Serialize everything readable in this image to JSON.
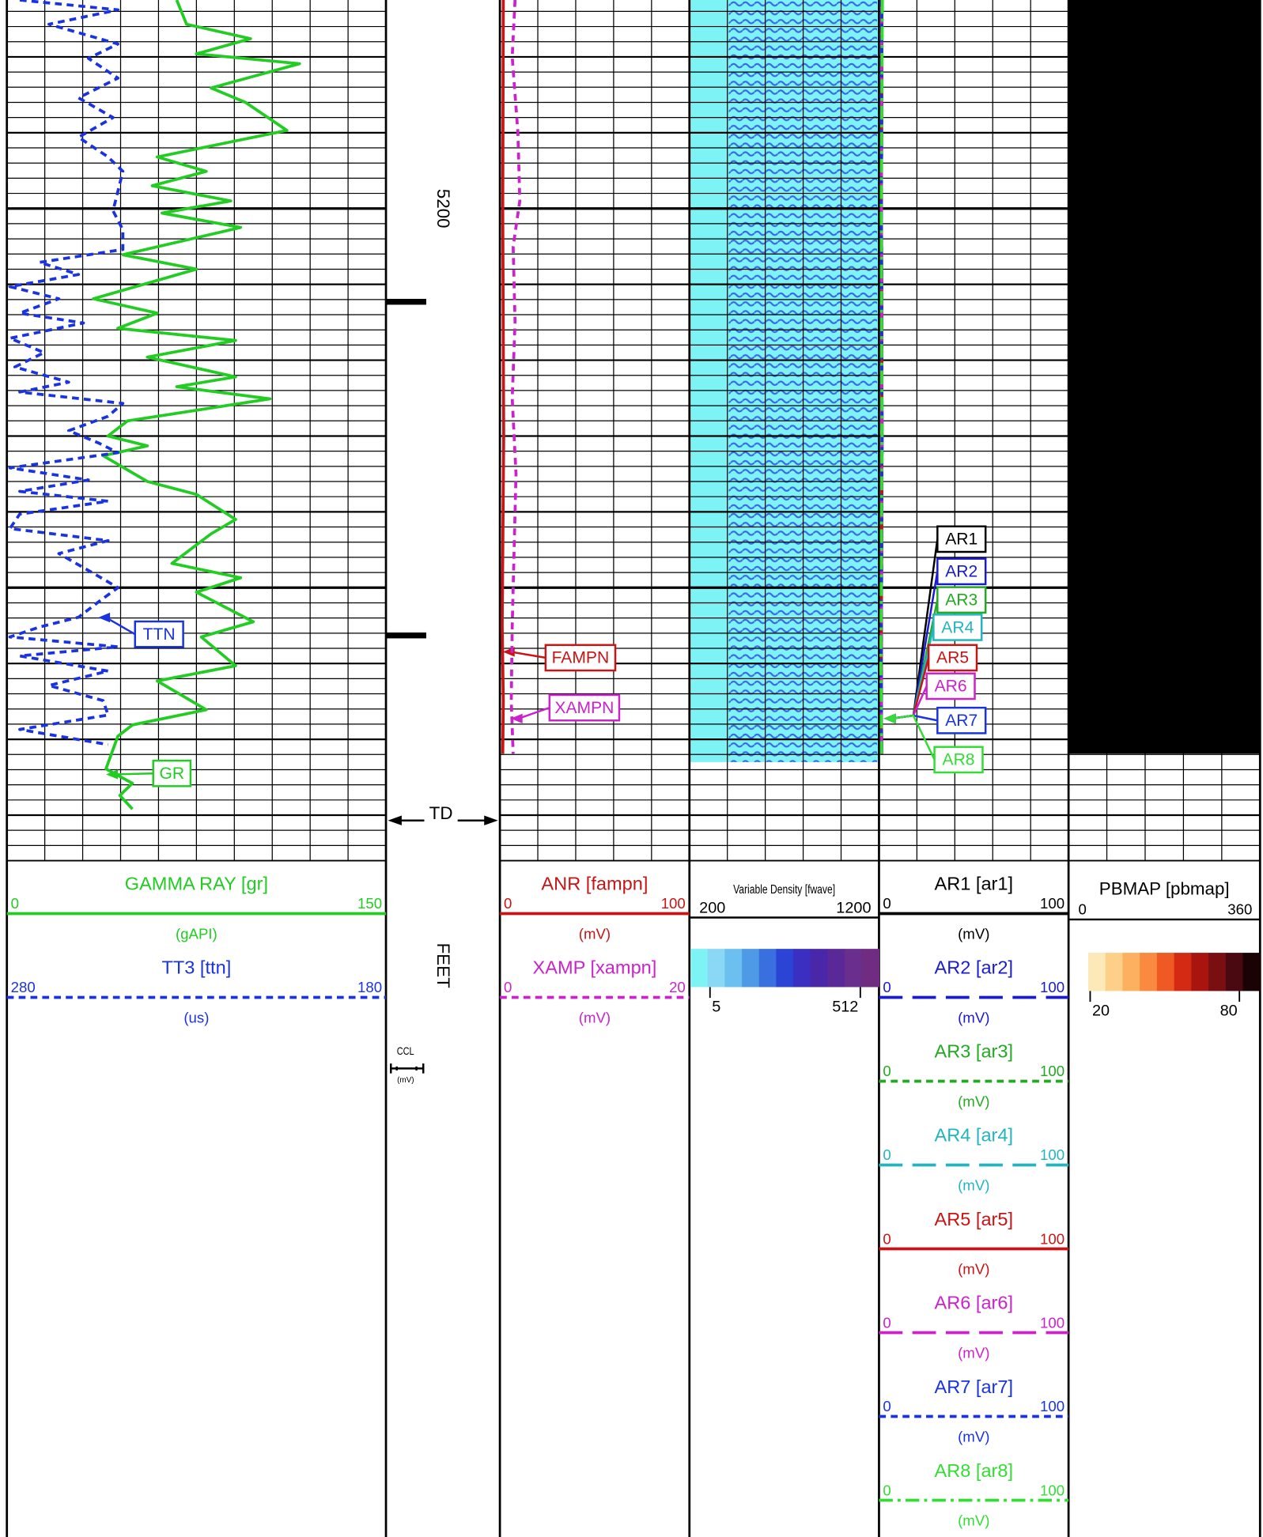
{
  "chart_data": {
    "type": "well-log",
    "depth_label": "FEET",
    "ylim": [
      5172.5,
      5286
    ],
    "yticks": [
      5200
    ],
    "grid_minor": 2,
    "grid_medium": 10,
    "grid_major": 50,
    "td": {
      "label": "TD",
      "value": 5280.7
    },
    "collars": [
      5212.3,
      5256.3
    ],
    "ccl": {
      "name": "CCL",
      "unit": "(mV)"
    },
    "tracks": [
      {
        "curves": [
          {
            "name": "GAMMA RAY  [gr]",
            "label": "GR",
            "unit": "(gAPI)",
            "color": "#22cc22",
            "line_style": "solid",
            "xlim": [
              0,
              150
            ],
            "depth": [
              5172.5,
              5175.7,
              5177.6,
              5179.6,
              5180.9,
              5184.1,
              5186.0,
              5189.7,
              5193.2,
              5195.1,
              5197.0,
              5199.0,
              5200.6,
              5202.5,
              5206.1,
              5208.0,
              5211.9,
              5213.8,
              5215.8,
              5217.4,
              5219.6,
              5222.2,
              5223.5,
              5225.1,
              5228.0,
              5230.0,
              5231.3,
              5232.6,
              5236.0,
              5237.7,
              5241.0,
              5242.9,
              5246.8,
              5248.7,
              5250.6,
              5254.5,
              5256.5,
              5260.3,
              5262.3,
              5266.1,
              5268.1,
              5269.6,
              5273.9,
              5275.8,
              5277.4,
              5279.2
            ],
            "values": [
              67.2,
              71.1,
              96.4,
              75.0,
              115.8,
              80.8,
              94.4,
              110.8,
              59.5,
              78.9,
              57.5,
              88.6,
              61.4,
              92.5,
              45.9,
              75.0,
              34.2,
              59.5,
              43.9,
              90.5,
              55.6,
              90.5,
              67.2,
              104.1,
              47.8,
              40.0,
              55.6,
              38.1,
              55.6,
              75.0,
              90.5,
              80.8,
              65.3,
              92.5,
              75.0,
              97.5,
              76.9,
              90.5,
              59.5,
              78.9,
              49.7,
              43.9,
              39.2,
              49.7,
              44.7,
              49.7
            ]
          },
          {
            "name": "TT3 [ttn]",
            "label": "TTN",
            "unit": "(us)",
            "color": "#1a33e0",
            "line_style": "dashed",
            "xlim": [
              280,
              180
            ],
            "depth": [
              5172.5,
              5173.8,
              5175.7,
              5178.3,
              5180.2,
              5182.8,
              5185.4,
              5188.0,
              5190.6,
              5193.2,
              5195.1,
              5197.7,
              5200.3,
              5202.8,
              5205.4,
              5207.1,
              5208.7,
              5210.3,
              5211.9,
              5213.8,
              5215.1,
              5217.1,
              5219.0,
              5220.9,
              5222.9,
              5224.2,
              5225.7,
              5227.4,
              5229.3,
              5230.9,
              5232.2,
              5234.2,
              5235.8,
              5237.3,
              5238.6,
              5240.3,
              5242.2,
              5243.8,
              5245.5,
              5248.1,
              5250.0,
              5251.9,
              5253.9,
              5255.2,
              5256.5,
              5257.8,
              5259.0,
              5261.0,
              5262.9,
              5264.9,
              5266.8,
              5268.7,
              5270.7
            ],
            "values": [
              276.6,
              250.7,
              268.9,
              250.7,
              258.5,
              250.7,
              261.1,
              252.0,
              261.1,
              253.3,
              249.4,
              250.7,
              252.0,
              249.4,
              249.4,
              271.4,
              261.1,
              279.2,
              266.3,
              276.6,
              259.8,
              279.2,
              270.2,
              277.9,
              263.7,
              276.6,
              249.4,
              253.3,
              263.7,
              255.9,
              250.7,
              279.2,
              258.5,
              276.6,
              253.3,
              276.6,
              279.2,
              253.3,
              266.3,
              257.2,
              250.7,
              255.9,
              261.1,
              271.4,
              279.2,
              250.7,
              276.6,
              253.3,
              268.9,
              254.6,
              253.3,
              276.6,
              253.3
            ]
          }
        ]
      },
      {
        "curves": [
          {
            "name": "ANR [fampn]",
            "label": "FAMPN",
            "unit": "(mV)",
            "color": "#c81414",
            "line_style": "solid",
            "xlim": [
              0,
              100
            ],
            "depth": [
              5172.5,
              5200,
              5230,
              5255,
              5265,
              5271.9
            ],
            "values": [
              1.8,
              1.5,
              2.0,
              1.2,
              1.8,
              1.5
            ]
          },
          {
            "name": "XAMP [xampn]",
            "label": "XAMPN",
            "unit": "(mV)",
            "color": "#cc22cc",
            "line_style": "dashed",
            "xlim": [
              0,
              20
            ],
            "depth": [
              5172.5,
              5180,
              5190,
              5199,
              5205,
              5215,
              5225,
              5235,
              5245,
              5255,
              5265,
              5271.9
            ],
            "values": [
              1.6,
              1.3,
              1.9,
              2.1,
              1.4,
              1.6,
              1.3,
              1.7,
              1.5,
              1.3,
              1.2,
              1.4
            ]
          }
        ]
      },
      {
        "image": {
          "name": "Variable Density [fwave]",
          "xlim": [
            200,
            1200
          ],
          "depth_range": [
            5172.5,
            5273.0
          ],
          "colorbar": {
            "colors": [
              "#7ef3f5",
              "#8ad8f5",
              "#6cc0f0",
              "#4f9ae6",
              "#3a6fe0",
              "#2b44d6",
              "#3a2fc0",
              "#4a27a8",
              "#5b2898",
              "#6a2e8e",
              "#702c80"
            ],
            "lim": [
              -61,
              575
            ],
            "ticks": [
              5,
              512
            ]
          }
        }
      },
      {
        "curves": [
          {
            "name": "AR1 [ar1]",
            "label": "AR1",
            "unit": "(mV)",
            "color": "#000000",
            "line_style": "solid",
            "xlim": [
              0,
              100
            ],
            "depth": [
              5172.5,
              5200,
              5230,
              5260,
              5271.9
            ],
            "values": [
              1.5,
              1.3,
              1.6,
              1.2,
              1.4
            ]
          },
          {
            "name": "AR2 [ar2]",
            "label": "AR2",
            "unit": "(mV)",
            "color": "#1a1ad0",
            "line_style": "long-dash",
            "xlim": [
              0,
              100
            ],
            "depth": [
              5172.5,
              5200,
              5230,
              5260,
              5271.9
            ],
            "values": [
              1.5,
              1.3,
              1.6,
              1.2,
              1.4
            ]
          },
          {
            "name": "AR3 [ar3]",
            "label": "AR3",
            "unit": "(mV)",
            "color": "#22aa22",
            "line_style": "dashed",
            "xlim": [
              0,
              100
            ],
            "depth": [
              5172.5,
              5200,
              5230,
              5260,
              5271.9
            ],
            "values": [
              1.5,
              1.3,
              1.6,
              1.2,
              1.4
            ]
          },
          {
            "name": "AR4 [ar4]",
            "label": "AR4",
            "unit": "(mV)",
            "color": "#22b5c0",
            "line_style": "long-dash",
            "xlim": [
              0,
              100
            ],
            "depth": [
              5172.5,
              5200,
              5230,
              5260,
              5271.9
            ],
            "values": [
              1.5,
              1.3,
              1.6,
              1.2,
              1.4
            ]
          },
          {
            "name": "AR5 [ar5]",
            "label": "AR5",
            "unit": "(mV)",
            "color": "#c81414",
            "line_style": "solid",
            "xlim": [
              0,
              100
            ],
            "depth": [
              5172.5,
              5200,
              5230,
              5260,
              5271.9
            ],
            "values": [
              1.5,
              1.3,
              1.6,
              1.2,
              1.4
            ]
          },
          {
            "name": "AR6 [ar6]",
            "label": "AR6",
            "unit": "(mV)",
            "color": "#cc22cc",
            "line_style": "long-dash",
            "xlim": [
              0,
              100
            ],
            "depth": [
              5172.5,
              5200,
              5230,
              5260,
              5271.9
            ],
            "values": [
              1.5,
              1.3,
              1.6,
              1.2,
              1.4
            ]
          },
          {
            "name": "AR7 [ar7]",
            "label": "AR7",
            "unit": "(mV)",
            "color": "#1a33e0",
            "line_style": "dashed",
            "xlim": [
              0,
              100
            ],
            "depth": [
              5172.5,
              5200,
              5230,
              5260,
              5271.9
            ],
            "values": [
              1.5,
              1.3,
              1.6,
              1.2,
              1.4
            ]
          },
          {
            "name": "AR8 [ar8]",
            "label": "AR8",
            "unit": "(mV)",
            "color": "#33dd33",
            "line_style": "dash-dot",
            "xlim": [
              0,
              100
            ],
            "depth": [
              5172.5,
              5200,
              5230,
              5260,
              5271.9
            ],
            "values": [
              1.8,
              1.2,
              1.6,
              1.0,
              1.4
            ]
          }
        ]
      },
      {
        "image": {
          "name": "PBMAP [pbmap]",
          "xlim": [
            0,
            360
          ],
          "depth_range": [
            5172.5,
            5271.9
          ],
          "colorbar": {
            "colors": [
              "#fde9b8",
              "#fdd08a",
              "#fdb060",
              "#f98a40",
              "#ef5a24",
              "#d42a14",
              "#a8150f",
              "#7a0f12",
              "#4a0810",
              "#1a0205"
            ],
            "lim": [
              19.2,
              88.3
            ],
            "ticks": [
              20,
              80
            ]
          }
        }
      }
    ]
  }
}
